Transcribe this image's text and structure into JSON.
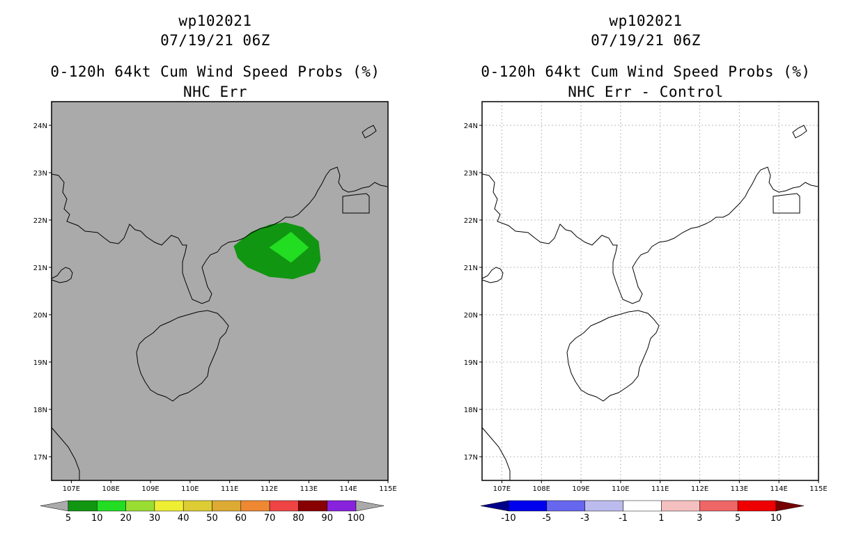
{
  "panels": [
    {
      "id": "left",
      "storm": "wp102021",
      "datetime": "07/19/21 06Z",
      "product": "0-120h 64kt Cum Wind Speed Probs (%)",
      "subtitle": "NHC Err",
      "background": "#aaaaaa",
      "grid": false,
      "colorbar": {
        "labels": [
          "5",
          "10",
          "20",
          "30",
          "40",
          "50",
          "60",
          "70",
          "80",
          "90",
          "100"
        ],
        "colors": [
          "#119611",
          "#22dd22",
          "#99dd33",
          "#eeee33",
          "#ddcc33",
          "#ddaa33",
          "#ee8833",
          "#ee4444",
          "#880000",
          "#8822dd"
        ],
        "under_color": "#aaaaaa",
        "over_color": "#aaaaaa"
      }
    },
    {
      "id": "right",
      "storm": "wp102021",
      "datetime": "07/19/21 06Z",
      "product": "0-120h 64kt Cum Wind Speed Probs (%)",
      "subtitle": "NHC Err - Control",
      "background": "#ffffff",
      "grid": true,
      "colorbar": {
        "labels": [
          "-10",
          "-5",
          "-3",
          "-1",
          "1",
          "3",
          "5",
          "10"
        ],
        "colors": [
          "#0000ee",
          "#6666ee",
          "#bbbbee",
          "#ffffff",
          "#f4c0c0",
          "#ee6666",
          "#ee0000"
        ],
        "under_color": "#000088",
        "over_color": "#770000"
      }
    }
  ],
  "map": {
    "lat_labels": [
      "24N",
      "23N",
      "22N",
      "21N",
      "20N",
      "19N",
      "18N",
      "17N"
    ],
    "lon_labels": [
      "107E",
      "108E",
      "109E",
      "110E",
      "111E",
      "112E",
      "113E",
      "114E",
      "115E"
    ],
    "lon_range": [
      106.5,
      115
    ],
    "lat_range": [
      16.5,
      24.5
    ]
  },
  "probability_region": {
    "outer_color": "#119611",
    "inner_color": "#22dd22"
  }
}
